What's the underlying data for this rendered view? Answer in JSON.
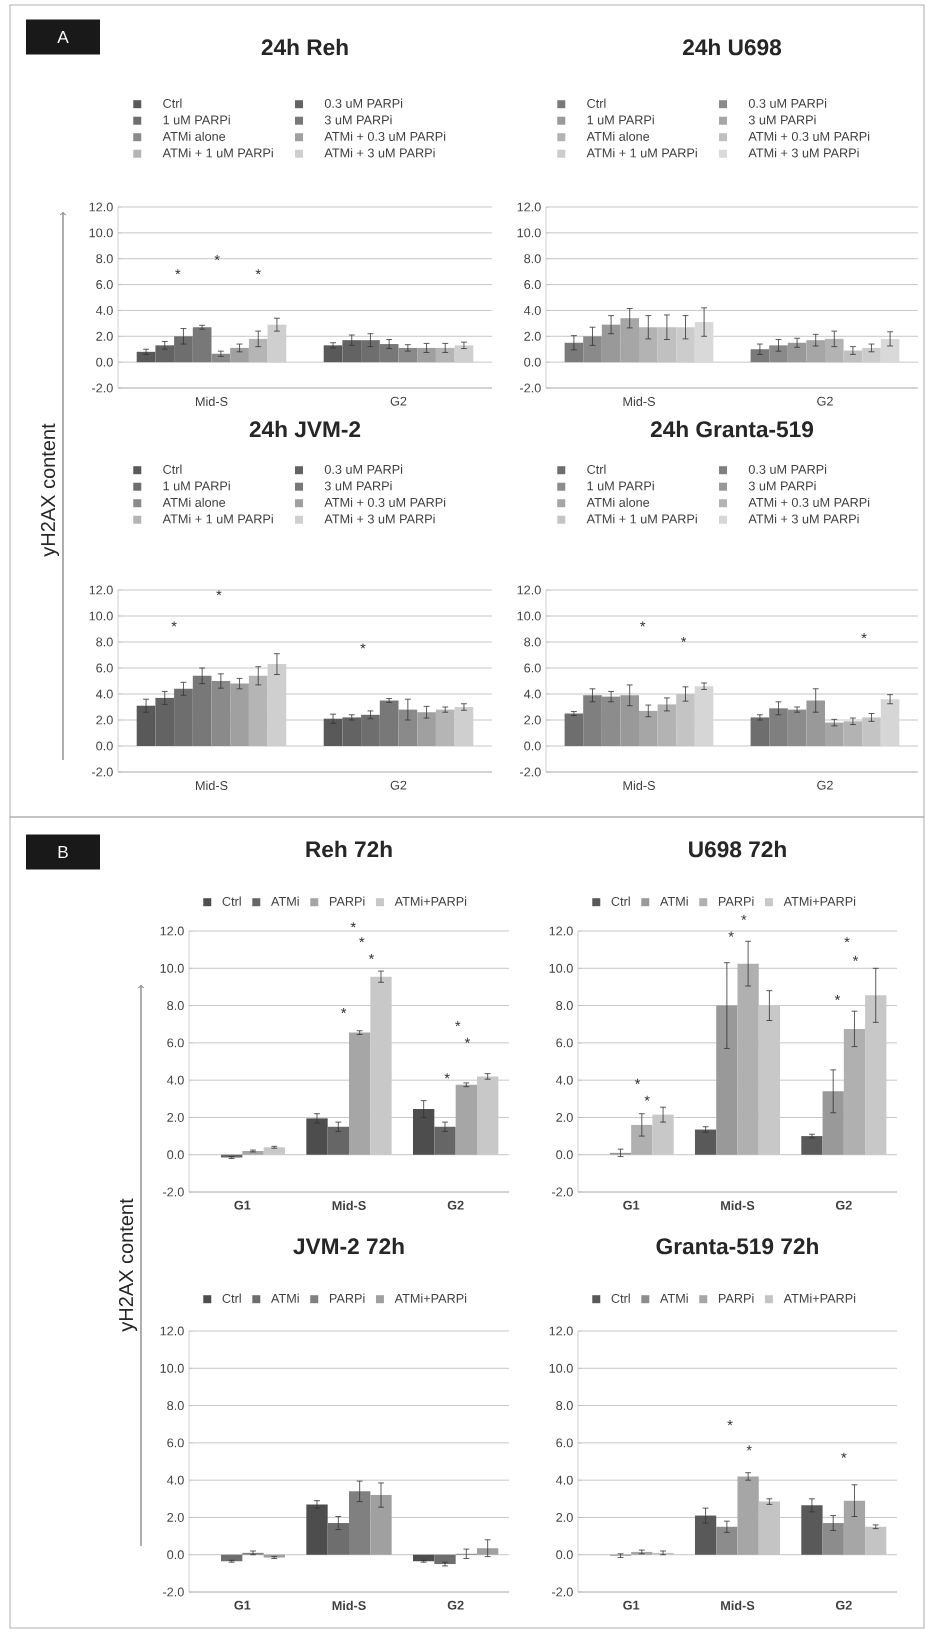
{
  "chart_data": [
    {
      "type": "bar",
      "title": "24h Reh",
      "ylabel": "yH2AX content",
      "categories": [
        "Mid-S",
        "G2"
      ],
      "series": [
        {
          "name": "Ctrl",
          "color": "#595959",
          "values": [
            0.8,
            1.3
          ],
          "errors": [
            0.2,
            0.2
          ]
        },
        {
          "name": "0.3 uM PARPi",
          "color": "#636363",
          "values": [
            1.3,
            1.7
          ],
          "errors": [
            0.3,
            0.4
          ]
        },
        {
          "name": "1 uM PARPi",
          "color": "#6e6e6e",
          "values": [
            2.0,
            1.7
          ],
          "errors": [
            0.6,
            0.5
          ]
        },
        {
          "name": "3 uM PARPi",
          "color": "#787878",
          "values": [
            2.7,
            1.4
          ],
          "errors": [
            0.15,
            0.35
          ]
        },
        {
          "name": "ATMi alone",
          "color": "#8a8a8a",
          "values": [
            0.65,
            1.1
          ],
          "errors": [
            0.2,
            0.25
          ]
        },
        {
          "name": "ATMi + 0.3 uM PARPi",
          "color": "#a0a0a0",
          "values": [
            1.1,
            1.1
          ],
          "errors": [
            0.3,
            0.35
          ]
        },
        {
          "name": "ATMi + 1 uM PARPi",
          "color": "#b5b5b5",
          "values": [
            1.8,
            1.1
          ],
          "errors": [
            0.6,
            0.35
          ]
        },
        {
          "name": "ATMi + 3 uM PARPi",
          "color": "#cfcfcf",
          "values": [
            2.9,
            1.3
          ],
          "errors": [
            0.5,
            0.25
          ]
        }
      ],
      "ylim": [
        -2,
        12
      ],
      "yticks": [
        {
          "value": -2,
          "label": "-2.0"
        },
        {
          "value": 0,
          "label": "0.0"
        },
        {
          "value": 2,
          "label": "2.0"
        },
        {
          "value": 4,
          "label": "4.0"
        },
        {
          "value": 6,
          "label": "6.0"
        },
        {
          "value": 8,
          "label": "8.0"
        },
        {
          "value": 10,
          "label": "10.0"
        },
        {
          "value": 12,
          "label": "12.0"
        }
      ],
      "grid": "y",
      "legend": "top",
      "annotations": [
        "A",
        "*",
        "*",
        "*"
      ]
    },
    {
      "type": "bar",
      "title": "24h U698",
      "categories": [
        "Mid-S",
        "G2"
      ],
      "series": [
        {
          "name": "Ctrl",
          "color": "#7a7a7a",
          "values": [
            1.5,
            1.0
          ],
          "errors": [
            0.55,
            0.4
          ]
        },
        {
          "name": "0.3 uM PARPi",
          "color": "#8a8a8a",
          "values": [
            2.0,
            1.3
          ],
          "errors": [
            0.7,
            0.45
          ]
        },
        {
          "name": "1 uM PARPi",
          "color": "#999999",
          "values": [
            2.9,
            1.5
          ],
          "errors": [
            0.7,
            0.35
          ]
        },
        {
          "name": "3 uM PARPi",
          "color": "#a6a6a6",
          "values": [
            3.4,
            1.7
          ],
          "errors": [
            0.75,
            0.45
          ]
        },
        {
          "name": "ATMi alone",
          "color": "#b3b3b3",
          "values": [
            2.7,
            1.8
          ],
          "errors": [
            0.9,
            0.6
          ]
        },
        {
          "name": "ATMi + 0.3 uM PARPi",
          "color": "#c0c0c0",
          "values": [
            2.7,
            0.9
          ],
          "errors": [
            0.95,
            0.3
          ]
        },
        {
          "name": "ATMi + 1 uM PARPi",
          "color": "#cccccc",
          "values": [
            2.7,
            1.1
          ],
          "errors": [
            0.9,
            0.3
          ]
        },
        {
          "name": "ATMi + 3 uM PARPi",
          "color": "#d9d9d9",
          "values": [
            3.1,
            1.8
          ],
          "errors": [
            1.1,
            0.55
          ]
        }
      ],
      "ylim": [
        -2,
        12
      ],
      "yticks": [
        {
          "value": -2,
          "label": "-2.0"
        },
        {
          "value": 0,
          "label": "0.0"
        },
        {
          "value": 2,
          "label": "2.0"
        },
        {
          "value": 4,
          "label": "4.0"
        },
        {
          "value": 6,
          "label": "6.0"
        },
        {
          "value": 8,
          "label": "8.0"
        },
        {
          "value": 10,
          "label": "10.0"
        },
        {
          "value": 12,
          "label": "12.0"
        }
      ],
      "grid": "y",
      "legend": "top"
    },
    {
      "type": "bar",
      "title": "24h JVM-2",
      "categories": [
        "Mid-S",
        "G2"
      ],
      "series": [
        {
          "name": "Ctrl",
          "color": "#595959",
          "values": [
            3.1,
            2.1
          ],
          "errors": [
            0.5,
            0.35
          ]
        },
        {
          "name": "0.3 uM PARPi",
          "color": "#636363",
          "values": [
            3.7,
            2.2
          ],
          "errors": [
            0.5,
            0.2
          ]
        },
        {
          "name": "1 uM PARPi",
          "color": "#6e6e6e",
          "values": [
            4.4,
            2.4
          ],
          "errors": [
            0.5,
            0.3
          ]
        },
        {
          "name": "3 uM PARPi",
          "color": "#787878",
          "values": [
            5.4,
            3.5
          ],
          "errors": [
            0.6,
            0.15
          ]
        },
        {
          "name": "ATMi alone",
          "color": "#8a8a8a",
          "values": [
            5.0,
            2.8
          ],
          "errors": [
            0.55,
            0.8
          ]
        },
        {
          "name": "ATMi + 0.3 uM PARPi",
          "color": "#a0a0a0",
          "values": [
            4.8,
            2.6
          ],
          "errors": [
            0.4,
            0.45
          ]
        },
        {
          "name": "ATMi + 1 uM PARPi",
          "color": "#b5b5b5",
          "values": [
            5.4,
            2.8
          ],
          "errors": [
            0.7,
            0.2
          ]
        },
        {
          "name": "ATMi + 3 uM PARPi",
          "color": "#cfcfcf",
          "values": [
            6.3,
            3.0
          ],
          "errors": [
            0.8,
            0.25
          ]
        }
      ],
      "ylim": [
        -2,
        12
      ],
      "yticks": [
        {
          "value": -2,
          "label": "-2.0"
        },
        {
          "value": 0,
          "label": "0.0"
        },
        {
          "value": 2,
          "label": "2.0"
        },
        {
          "value": 4,
          "label": "4.0"
        },
        {
          "value": 6,
          "label": "6.0"
        },
        {
          "value": 8,
          "label": "8.0"
        },
        {
          "value": 10,
          "label": "10.0"
        },
        {
          "value": 12,
          "label": "12.0"
        }
      ],
      "grid": "y",
      "legend": "top",
      "annotations": [
        "*",
        "*",
        "*"
      ]
    },
    {
      "type": "bar",
      "title": "24h Granta-519",
      "categories": [
        "Mid-S",
        "G2"
      ],
      "series": [
        {
          "name": "Ctrl",
          "color": "#6e6e6e",
          "values": [
            2.5,
            2.2
          ],
          "errors": [
            0.15,
            0.2
          ]
        },
        {
          "name": "0.3 uM PARPi",
          "color": "#7f7f7f",
          "values": [
            3.9,
            2.9
          ],
          "errors": [
            0.5,
            0.5
          ]
        },
        {
          "name": "1 uM PARPi",
          "color": "#8c8c8c",
          "values": [
            3.8,
            2.8
          ],
          "errors": [
            0.4,
            0.2
          ]
        },
        {
          "name": "3 uM PARPi",
          "color": "#999999",
          "values": [
            3.9,
            3.5
          ],
          "errors": [
            0.8,
            0.9
          ]
        },
        {
          "name": "ATMi alone",
          "color": "#a6a6a6",
          "values": [
            2.7,
            1.8
          ],
          "errors": [
            0.45,
            0.25
          ]
        },
        {
          "name": "ATMi + 0.3 uM PARPi",
          "color": "#b3b3b3",
          "values": [
            3.2,
            1.9
          ],
          "errors": [
            0.5,
            0.25
          ]
        },
        {
          "name": "ATMi + 1 uM PARPi",
          "color": "#c4c4c4",
          "values": [
            4.0,
            2.2
          ],
          "errors": [
            0.55,
            0.3
          ]
        },
        {
          "name": "ATMi + 3 uM PARPi",
          "color": "#d6d6d6",
          "values": [
            4.6,
            3.6
          ],
          "errors": [
            0.25,
            0.35
          ]
        }
      ],
      "ylim": [
        -2,
        12
      ],
      "yticks": [
        {
          "value": -2,
          "label": "-2.0"
        },
        {
          "value": 0,
          "label": "0.0"
        },
        {
          "value": 2,
          "label": "2.0"
        },
        {
          "value": 4,
          "label": "4.0"
        },
        {
          "value": 6,
          "label": "6.0"
        },
        {
          "value": 8,
          "label": "8.0"
        },
        {
          "value": 10,
          "label": "10.0"
        },
        {
          "value": 12,
          "label": "12.0"
        }
      ],
      "grid": "y",
      "legend": "top",
      "annotations": [
        "*",
        "*",
        "*"
      ]
    },
    {
      "type": "bar",
      "title": "Reh 72h",
      "ylabel": "yH2AX content",
      "categories": [
        "G1",
        "Mid-S",
        "G2"
      ],
      "series": [
        {
          "name": "Ctrl",
          "color": "#4d4d4d",
          "values": [
            null,
            1.95,
            2.45
          ],
          "errors": [
            null,
            0.25,
            0.45
          ]
        },
        {
          "name": "ATMi",
          "color": "#666666",
          "values": [
            -0.15,
            1.5,
            1.5
          ],
          "errors": [
            0.05,
            0.25,
            0.25
          ]
        },
        {
          "name": "PARPi",
          "color": "#a6a6a6",
          "values": [
            0.2,
            6.55,
            3.75
          ],
          "errors": [
            0.05,
            0.1,
            0.1
          ]
        },
        {
          "name": "ATMi+PARPi",
          "color": "#c8c8c8",
          "values": [
            0.4,
            9.55,
            4.2
          ],
          "errors": [
            0.05,
            0.3,
            0.15
          ]
        }
      ],
      "ylim": [
        -2,
        12
      ],
      "yticks": [
        {
          "value": -2,
          "label": "-2.0"
        },
        {
          "value": 0,
          "label": "0.0"
        },
        {
          "value": 2,
          "label": "2.0"
        },
        {
          "value": 4,
          "label": "4.0"
        },
        {
          "value": 6,
          "label": "6.0"
        },
        {
          "value": 8,
          "label": "8.0"
        },
        {
          "value": 10,
          "label": "10.0"
        },
        {
          "value": 12,
          "label": "12.0"
        }
      ],
      "grid": "y",
      "legend": "top",
      "annotations": [
        "B",
        "*",
        "*",
        "*",
        "*",
        "*",
        "*",
        "*"
      ]
    },
    {
      "type": "bar",
      "title": "U698 72h",
      "categories": [
        "G1",
        "Mid-S",
        "G2"
      ],
      "series": [
        {
          "name": "Ctrl",
          "color": "#595959",
          "values": [
            null,
            1.35,
            1.0
          ],
          "errors": [
            null,
            0.15,
            0.1
          ]
        },
        {
          "name": "ATMi",
          "color": "#999999",
          "values": [
            0.1,
            8.0,
            3.4
          ],
          "errors": [
            0.2,
            2.3,
            1.15
          ]
        },
        {
          "name": "PARPi",
          "color": "#b0b0b0",
          "values": [
            1.6,
            10.25,
            6.75
          ],
          "errors": [
            0.6,
            1.2,
            0.95
          ]
        },
        {
          "name": "ATMi+PARPi",
          "color": "#c8c8c8",
          "values": [
            2.15,
            8.0,
            8.55
          ],
          "errors": [
            0.4,
            0.8,
            1.45
          ]
        }
      ],
      "ylim": [
        -2,
        12
      ],
      "yticks": [
        {
          "value": -2,
          "label": "-2.0"
        },
        {
          "value": 0,
          "label": "0.0"
        },
        {
          "value": 2,
          "label": "2.0"
        },
        {
          "value": 4,
          "label": "4.0"
        },
        {
          "value": 6,
          "label": "6.0"
        },
        {
          "value": 8,
          "label": "8.0"
        },
        {
          "value": 10,
          "label": "10.0"
        },
        {
          "value": 12,
          "label": "12.0"
        }
      ],
      "grid": "y",
      "legend": "top",
      "annotations": [
        "*",
        "*",
        "*",
        "*",
        "*",
        "*",
        "*"
      ]
    },
    {
      "type": "bar",
      "title": "JVM-2 72h",
      "categories": [
        "G1",
        "Mid-S",
        "G2"
      ],
      "series": [
        {
          "name": "Ctrl",
          "color": "#4d4d4d",
          "values": [
            null,
            2.7,
            -0.35
          ],
          "errors": [
            null,
            0.2,
            0.05
          ]
        },
        {
          "name": "ATMi",
          "color": "#6e6e6e",
          "values": [
            -0.35,
            1.7,
            -0.5
          ],
          "errors": [
            0.05,
            0.35,
            0.1
          ]
        },
        {
          "name": "PARPi",
          "color": "#808080",
          "values": [
            0.1,
            3.4,
            0.05
          ],
          "errors": [
            0.1,
            0.55,
            0.25
          ]
        },
        {
          "name": "ATMi+PARPi",
          "color": "#a0a0a0",
          "values": [
            -0.15,
            3.2,
            0.35
          ],
          "errors": [
            0.05,
            0.65,
            0.45
          ]
        }
      ],
      "ylim": [
        -2,
        12
      ],
      "yticks": [
        {
          "value": -2,
          "label": "-2.0"
        },
        {
          "value": 0,
          "label": "0.0"
        },
        {
          "value": 2,
          "label": "2.0"
        },
        {
          "value": 4,
          "label": "4.0"
        },
        {
          "value": 6,
          "label": "6.0"
        },
        {
          "value": 8,
          "label": "8.0"
        },
        {
          "value": 10,
          "label": "10.0"
        },
        {
          "value": 12,
          "label": "12.0"
        }
      ],
      "grid": "y",
      "legend": "top"
    },
    {
      "type": "bar",
      "title": "Granta-519 72h",
      "categories": [
        "G1",
        "Mid-S",
        "G2"
      ],
      "series": [
        {
          "name": "Ctrl",
          "color": "#595959",
          "values": [
            null,
            2.1,
            2.65
          ],
          "errors": [
            null,
            0.4,
            0.35
          ]
        },
        {
          "name": "ATMi",
          "color": "#8c8c8c",
          "values": [
            -0.05,
            1.5,
            1.7
          ],
          "errors": [
            0.1,
            0.3,
            0.4
          ]
        },
        {
          "name": "PARPi",
          "color": "#a6a6a6",
          "values": [
            0.15,
            4.2,
            2.9
          ],
          "errors": [
            0.1,
            0.2,
            0.85
          ]
        },
        {
          "name": "ATMi+PARPi",
          "color": "#c4c4c4",
          "values": [
            0.1,
            2.85,
            1.5
          ],
          "errors": [
            0.1,
            0.15,
            0.1
          ]
        }
      ],
      "ylim": [
        -2,
        12
      ],
      "yticks": [
        {
          "value": -2,
          "label": "-2.0"
        },
        {
          "value": 0,
          "label": "0.0"
        },
        {
          "value": 2,
          "label": "2.0"
        },
        {
          "value": 4,
          "label": "4.0"
        },
        {
          "value": 6,
          "label": "6.0"
        },
        {
          "value": 8,
          "label": "8.0"
        },
        {
          "value": 10,
          "label": "10.0"
        },
        {
          "value": 12,
          "label": "12.0"
        }
      ],
      "grid": "y",
      "legend": "top",
      "annotations": [
        "*",
        "*",
        "*"
      ]
    }
  ]
}
